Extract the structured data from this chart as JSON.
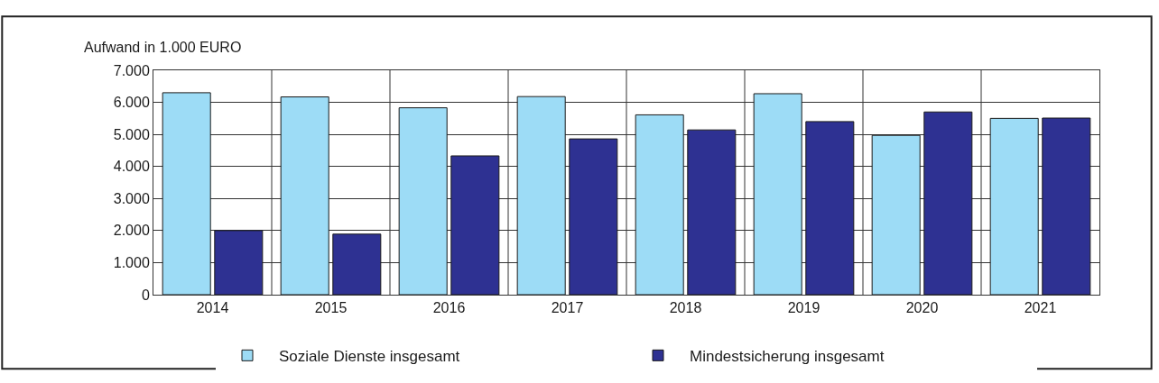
{
  "chart_data": {
    "type": "bar",
    "ylabel": "Aufwand in 1.000 EURO",
    "categories": [
      "2014",
      "2015",
      "2016",
      "2017",
      "2018",
      "2019",
      "2020",
      "2021"
    ],
    "series": [
      {
        "name": "Soziale Dienste insgesamt",
        "color": "#9ddcf6",
        "values": [
          6300,
          6170,
          5830,
          6180,
          5610,
          6270,
          4970,
          5500
        ]
      },
      {
        "name": "Mindestsicherung insgesamt",
        "color": "#2e3192",
        "values": [
          2000,
          1890,
          4330,
          4860,
          5140,
          5400,
          5700,
          5510
        ]
      }
    ],
    "ylim": [
      0,
      7000
    ],
    "yticks": [
      {
        "value": 0,
        "label": "0"
      },
      {
        "value": 1000,
        "label": "1.000"
      },
      {
        "value": 2000,
        "label": "2.000"
      },
      {
        "value": 3000,
        "label": "3.000"
      },
      {
        "value": 4000,
        "label": "4.000"
      },
      {
        "value": 5000,
        "label": "5.000"
      },
      {
        "value": 6000,
        "label": "6.000"
      },
      {
        "value": 7000,
        "label": "7.000"
      }
    ],
    "grid": true,
    "legend": "bottom"
  }
}
